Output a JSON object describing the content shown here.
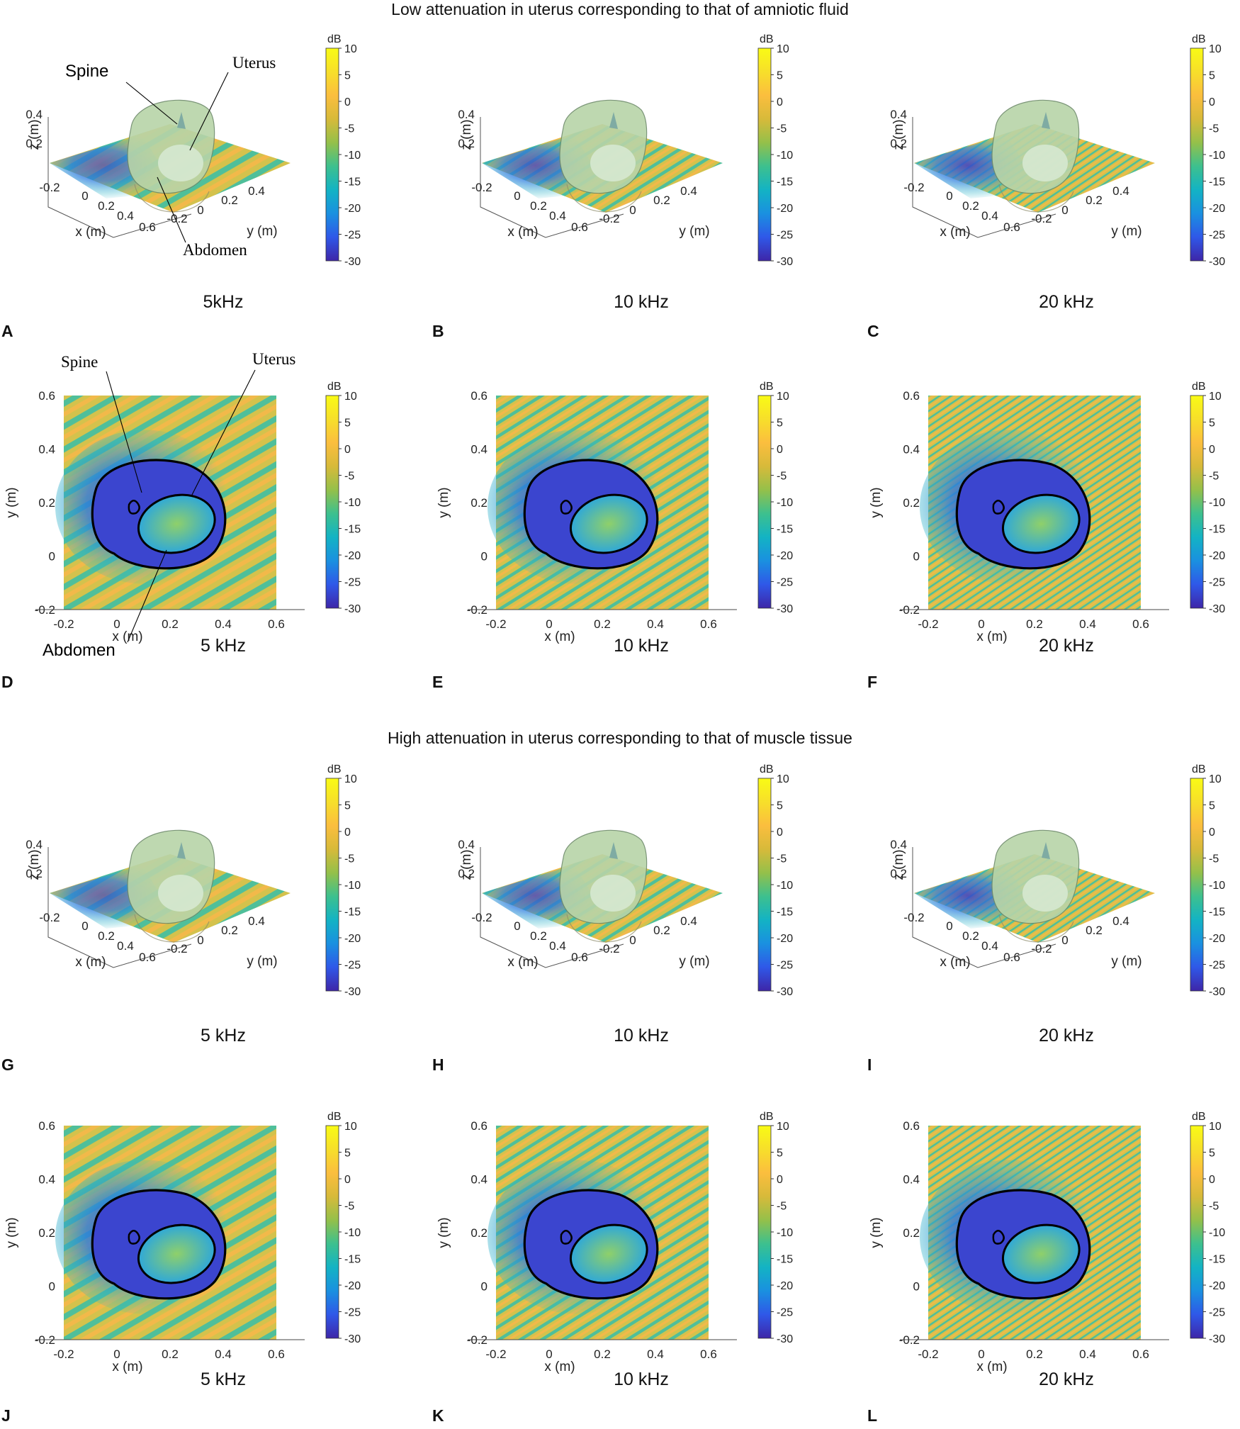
{
  "figure": {
    "title_low": "Low attenuation in uterus corresponding to that of amniotic fluid",
    "title_high": "High attenuation in uterus corresponding to that of muscle tissue"
  },
  "annotations": {
    "spine": "Spine",
    "uterus": "Uterus",
    "abdomen": "Abdomen"
  },
  "colors": {
    "colormap": [
      "#3e26a8",
      "#2f58e8",
      "#1a90e0",
      "#13b3c4",
      "#3dc08e",
      "#94c04a",
      "#d7ba3a",
      "#fbbe3e",
      "#f7df2a",
      "#f9fb15"
    ],
    "background_field": "#d2c34e",
    "outline": "#000000"
  },
  "chart_data": [
    {
      "id": "A",
      "type": "heatmap",
      "view": "3d",
      "frequency_label": "5kHz",
      "xlabel": "x (m)",
      "ylabel": "y (m)",
      "zlabel": "z (m)",
      "x_ticks": [
        "-0.2",
        "0",
        "0.2",
        "0.4",
        "0.6"
      ],
      "y_ticks": [
        "-0.2",
        "0",
        "0.2",
        "0.4"
      ],
      "z_ticks": [
        "0.2",
        "0.4"
      ],
      "colorbar": {
        "unit": "dB",
        "ticks": [
          "10",
          "5",
          "0",
          "-5",
          "-10",
          "-15",
          "-20",
          "-25",
          "-30"
        ],
        "range": [
          -30,
          10
        ]
      }
    },
    {
      "id": "B",
      "type": "heatmap",
      "view": "3d",
      "frequency_label": "10 kHz",
      "xlabel": "x (m)",
      "ylabel": "y (m)",
      "zlabel": "z (m)",
      "x_ticks": [
        "-0.2",
        "0",
        "0.2",
        "0.4",
        "0.6"
      ],
      "y_ticks": [
        "-0.2",
        "0",
        "0.2",
        "0.4"
      ],
      "z_ticks": [
        "0.2",
        "0.4"
      ],
      "colorbar": {
        "unit": "dB",
        "ticks": [
          "10",
          "5",
          "0",
          "-5",
          "-10",
          "-15",
          "-20",
          "-25",
          "-30"
        ],
        "range": [
          -30,
          10
        ]
      }
    },
    {
      "id": "C",
      "type": "heatmap",
      "view": "3d",
      "frequency_label": "20 kHz",
      "xlabel": "x (m)",
      "ylabel": "y (m)",
      "zlabel": "z (m)",
      "x_ticks": [
        "-0.2",
        "0",
        "0.2",
        "0.4",
        "0.6"
      ],
      "y_ticks": [
        "-0.2",
        "0",
        "0.2",
        "0.4"
      ],
      "z_ticks": [
        "0.2",
        "0.4"
      ],
      "colorbar": {
        "unit": "dB",
        "ticks": [
          "10",
          "5",
          "0",
          "-5",
          "-10",
          "-15",
          "-20",
          "-25",
          "-30"
        ],
        "range": [
          -30,
          10
        ]
      }
    },
    {
      "id": "D",
      "type": "heatmap",
      "view": "2d",
      "frequency_label": "5 kHz",
      "xlabel": "x (m)",
      "ylabel": "y (m)",
      "x_ticks": [
        "-0.2",
        "0",
        "0.2",
        "0.4",
        "0.6"
      ],
      "y_ticks": [
        "0.6",
        "0.4",
        "0.2",
        "0",
        "-0.2"
      ],
      "xlim": [
        -0.2,
        0.6
      ],
      "ylim": [
        -0.2,
        0.6
      ],
      "colorbar": {
        "unit": "dB",
        "ticks": [
          "10",
          "5",
          "0",
          "-5",
          "-10",
          "-15",
          "-20",
          "-25",
          "-30"
        ],
        "range": [
          -30,
          10
        ]
      }
    },
    {
      "id": "E",
      "type": "heatmap",
      "view": "2d",
      "frequency_label": "10 kHz",
      "xlabel": "x (m)",
      "ylabel": "y (m)",
      "x_ticks": [
        "-0.2",
        "0",
        "0.2",
        "0.4",
        "0.6"
      ],
      "y_ticks": [
        "0.6",
        "0.4",
        "0.2",
        "0",
        "-0.2"
      ],
      "xlim": [
        -0.2,
        0.6
      ],
      "ylim": [
        -0.2,
        0.6
      ],
      "colorbar": {
        "unit": "dB",
        "ticks": [
          "10",
          "5",
          "0",
          "-5",
          "-10",
          "-15",
          "-20",
          "-25",
          "-30"
        ],
        "range": [
          -30,
          10
        ]
      }
    },
    {
      "id": "F",
      "type": "heatmap",
      "view": "2d",
      "frequency_label": "20 kHz",
      "xlabel": "x (m)",
      "ylabel": "y (m)",
      "x_ticks": [
        "-0.2",
        "0",
        "0.2",
        "0.4",
        "0.6"
      ],
      "y_ticks": [
        "0.6",
        "0.4",
        "0.2",
        "0",
        "-0.2"
      ],
      "xlim": [
        -0.2,
        0.6
      ],
      "ylim": [
        -0.2,
        0.6
      ],
      "colorbar": {
        "unit": "dB",
        "ticks": [
          "10",
          "5",
          "0",
          "-5",
          "-10",
          "-15",
          "-20",
          "-25",
          "-30"
        ],
        "range": [
          -30,
          10
        ]
      }
    },
    {
      "id": "G",
      "type": "heatmap",
      "view": "3d",
      "frequency_label": "5 kHz",
      "xlabel": "x (m)",
      "ylabel": "y (m)",
      "zlabel": "z (m)",
      "x_ticks": [
        "-0.2",
        "0",
        "0.2",
        "0.4",
        "0.6"
      ],
      "y_ticks": [
        "-0.2",
        "0",
        "0.2",
        "0.4"
      ],
      "z_ticks": [
        "0.2",
        "0.4"
      ],
      "colorbar": {
        "unit": "dB",
        "ticks": [
          "10",
          "5",
          "0",
          "-5",
          "-10",
          "-15",
          "-20",
          "-25",
          "-30"
        ],
        "range": [
          -30,
          10
        ]
      }
    },
    {
      "id": "H",
      "type": "heatmap",
      "view": "3d",
      "frequency_label": "10 kHz",
      "xlabel": "x (m)",
      "ylabel": "y (m)",
      "zlabel": "z (m)",
      "x_ticks": [
        "-0.2",
        "0",
        "0.2",
        "0.4",
        "0.6"
      ],
      "y_ticks": [
        "-0.2",
        "0",
        "0.2",
        "0.4"
      ],
      "z_ticks": [
        "0.2",
        "0.4"
      ],
      "colorbar": {
        "unit": "dB",
        "ticks": [
          "10",
          "5",
          "0",
          "-5",
          "-10",
          "-15",
          "-20",
          "-25",
          "-30"
        ],
        "range": [
          -30,
          10
        ]
      }
    },
    {
      "id": "I",
      "type": "heatmap",
      "view": "3d",
      "frequency_label": "20 kHz",
      "xlabel": "x (m)",
      "ylabel": "y (m)",
      "zlabel": "z (m)",
      "x_ticks": [
        "-0.2",
        "0",
        "0.2",
        "0.4",
        "0.6"
      ],
      "y_ticks": [
        "-0.2",
        "0",
        "0.2",
        "0.4"
      ],
      "z_ticks": [
        "0.2",
        "0.4"
      ],
      "colorbar": {
        "unit": "dB",
        "ticks": [
          "10",
          "5",
          "0",
          "-5",
          "-10",
          "-15",
          "-20",
          "-25",
          "-30"
        ],
        "range": [
          -30,
          10
        ]
      }
    },
    {
      "id": "J",
      "type": "heatmap",
      "view": "2d",
      "frequency_label": "5 kHz",
      "xlabel": "x (m)",
      "ylabel": "y (m)",
      "x_ticks": [
        "-0.2",
        "0",
        "0.2",
        "0.4",
        "0.6"
      ],
      "y_ticks": [
        "0.6",
        "0.4",
        "0.2",
        "0",
        "-0.2"
      ],
      "xlim": [
        -0.2,
        0.6
      ],
      "ylim": [
        -0.2,
        0.6
      ],
      "colorbar": {
        "unit": "dB",
        "ticks": [
          "10",
          "5",
          "0",
          "-5",
          "-10",
          "-15",
          "-20",
          "-25",
          "-30"
        ],
        "range": [
          -30,
          10
        ]
      }
    },
    {
      "id": "K",
      "type": "heatmap",
      "view": "2d",
      "frequency_label": "10 kHz",
      "xlabel": "x (m)",
      "ylabel": "y (m)",
      "x_ticks": [
        "-0.2",
        "0",
        "0.2",
        "0.4",
        "0.6"
      ],
      "y_ticks": [
        "0.6",
        "0.4",
        "0.2",
        "0",
        "-0.2"
      ],
      "xlim": [
        -0.2,
        0.6
      ],
      "ylim": [
        -0.2,
        0.6
      ],
      "colorbar": {
        "unit": "dB",
        "ticks": [
          "10",
          "5",
          "0",
          "-5",
          "-10",
          "-15",
          "-20",
          "-25",
          "-30"
        ],
        "range": [
          -30,
          10
        ]
      }
    },
    {
      "id": "L",
      "type": "heatmap",
      "view": "2d",
      "frequency_label": "20 kHz",
      "xlabel": "x (m)",
      "ylabel": "y (m)",
      "x_ticks": [
        "-0.2",
        "0",
        "0.2",
        "0.4",
        "0.6"
      ],
      "y_ticks": [
        "0.6",
        "0.4",
        "0.2",
        "0",
        "-0.2"
      ],
      "xlim": [
        -0.2,
        0.6
      ],
      "ylim": [
        -0.2,
        0.6
      ],
      "colorbar": {
        "unit": "dB",
        "ticks": [
          "10",
          "5",
          "0",
          "-5",
          "-10",
          "-15",
          "-20",
          "-25",
          "-30"
        ],
        "range": [
          -30,
          10
        ]
      }
    }
  ]
}
